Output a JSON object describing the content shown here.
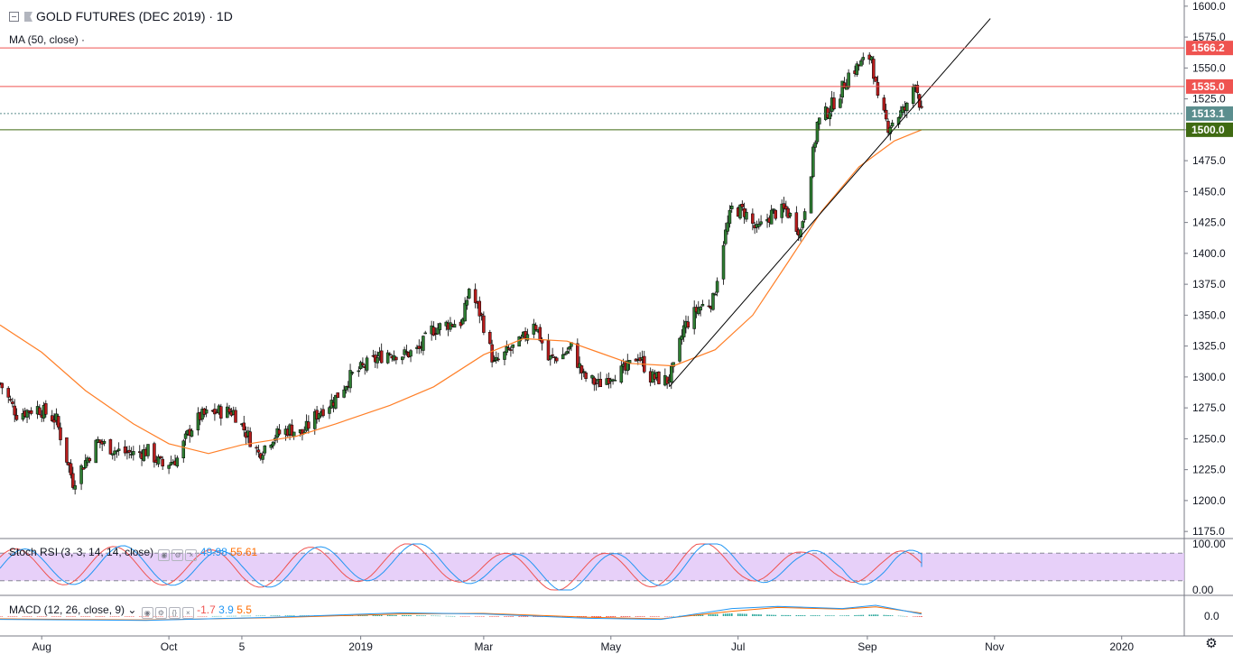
{
  "header": {
    "symbol_title": "GOLD FUTURES (DEC 2019) · 1D",
    "ma_label": "MA (50, close) ·"
  },
  "stoch": {
    "label": "Stoch RSI (3, 3, 14, 14, close)",
    "k_value": "49.98",
    "d_value": "55.61",
    "axis_labels": [
      "100.00",
      "0.00"
    ]
  },
  "macd": {
    "label": "MACD (12, 26, close, 9)",
    "hist_value": "-1.7",
    "macd_value": "3.9",
    "signal_value": "5.5",
    "axis_label": "0.0"
  },
  "toolbar": {
    "settings_icon": "gear-icon"
  },
  "chart_data": {
    "type": "candlestick",
    "title": "GOLD FUTURES (DEC 2019) · 1D",
    "price_axis": {
      "ylim": [
        1170,
        1605
      ],
      "ticks": [
        "1600.0",
        "1575.0",
        "1550.0",
        "1525.0",
        "1500.0",
        "1475.0",
        "1450.0",
        "1425.0",
        "1400.0",
        "1375.0",
        "1350.0",
        "1325.0",
        "1300.0",
        "1275.0",
        "1250.0",
        "1225.0",
        "1200.0",
        "1175.0"
      ]
    },
    "time_axis": {
      "labels": [
        {
          "label": "Aug",
          "date": "2018-08-01"
        },
        {
          "label": "Oct",
          "date": "2018-10-01"
        },
        {
          "label": "5",
          "date": "2018-11-05"
        },
        {
          "label": "2019",
          "date": "2019-01-01"
        },
        {
          "label": "Mar",
          "date": "2019-03-01"
        },
        {
          "label": "May",
          "date": "2019-05-01"
        },
        {
          "label": "Jul",
          "date": "2019-07-01"
        },
        {
          "label": "Sep",
          "date": "2019-09-01"
        },
        {
          "label": "Nov",
          "date": "2019-11-01"
        },
        {
          "label": "2020",
          "date": "2020-01-01"
        }
      ],
      "range": [
        "2018-07-12",
        "2020-01-31"
      ]
    },
    "close_path": [
      [
        "2018-07-12",
        1295
      ],
      [
        "2018-07-20",
        1270
      ],
      [
        "2018-07-30",
        1275
      ],
      [
        "2018-08-08",
        1265
      ],
      [
        "2018-08-16",
        1215
      ],
      [
        "2018-08-22",
        1232
      ],
      [
        "2018-08-28",
        1248
      ],
      [
        "2018-09-06",
        1240
      ],
      [
        "2018-09-14",
        1238
      ],
      [
        "2018-09-21",
        1240
      ],
      [
        "2018-09-28",
        1228
      ],
      [
        "2018-10-05",
        1234
      ],
      [
        "2018-10-11",
        1257
      ],
      [
        "2018-10-16",
        1268
      ],
      [
        "2018-10-24",
        1272
      ],
      [
        "2018-11-01",
        1272
      ],
      [
        "2018-11-07",
        1255
      ],
      [
        "2018-11-13",
        1238
      ],
      [
        "2018-11-20",
        1252
      ],
      [
        "2018-11-28",
        1258
      ],
      [
        "2018-12-04",
        1254
      ],
      [
        "2018-12-12",
        1272
      ],
      [
        "2018-12-19",
        1281
      ],
      [
        "2018-12-27",
        1300
      ],
      [
        "2019-01-04",
        1310
      ],
      [
        "2019-01-14",
        1320
      ],
      [
        "2019-01-22",
        1318
      ],
      [
        "2019-01-29",
        1322
      ],
      [
        "2019-02-04",
        1338
      ],
      [
        "2019-02-12",
        1343
      ],
      [
        "2019-02-19",
        1345
      ],
      [
        "2019-02-22",
        1372
      ],
      [
        "2019-02-28",
        1348
      ],
      [
        "2019-03-06",
        1310
      ],
      [
        "2019-03-13",
        1321
      ],
      [
        "2019-03-19",
        1328
      ],
      [
        "2019-03-25",
        1346
      ],
      [
        "2019-04-01",
        1314
      ],
      [
        "2019-04-08",
        1318
      ],
      [
        "2019-04-12",
        1324
      ],
      [
        "2019-04-18",
        1300
      ],
      [
        "2019-04-25",
        1294
      ],
      [
        "2019-05-02",
        1303
      ],
      [
        "2019-05-08",
        1305
      ],
      [
        "2019-05-14",
        1318
      ],
      [
        "2019-05-20",
        1300
      ],
      [
        "2019-05-28",
        1297
      ],
      [
        "2019-05-31",
        1306
      ],
      [
        "2019-06-05",
        1340
      ],
      [
        "2019-06-12",
        1356
      ],
      [
        "2019-06-19",
        1362
      ],
      [
        "2019-06-24",
        1410
      ],
      [
        "2019-06-28",
        1436
      ],
      [
        "2019-07-04",
        1434
      ],
      [
        "2019-07-10",
        1418
      ],
      [
        "2019-07-17",
        1432
      ],
      [
        "2019-07-24",
        1435
      ],
      [
        "2019-07-31",
        1418
      ],
      [
        "2019-08-05",
        1468
      ],
      [
        "2019-08-08",
        1505
      ],
      [
        "2019-08-13",
        1515
      ],
      [
        "2019-08-19",
        1530
      ],
      [
        "2019-08-23",
        1545
      ],
      [
        "2019-08-28",
        1552
      ],
      [
        "2019-09-03",
        1560
      ],
      [
        "2019-09-06",
        1522
      ],
      [
        "2019-09-11",
        1503
      ],
      [
        "2019-09-16",
        1512
      ],
      [
        "2019-09-20",
        1518
      ],
      [
        "2019-09-24",
        1541
      ],
      [
        "2019-09-27",
        1513.1
      ]
    ],
    "ma_50_path": [
      [
        "2018-07-12",
        1342
      ],
      [
        "2018-08-01",
        1320
      ],
      [
        "2018-08-22",
        1289
      ],
      [
        "2018-09-14",
        1262
      ],
      [
        "2018-10-01",
        1246
      ],
      [
        "2018-10-20",
        1238
      ],
      [
        "2018-11-05",
        1245
      ],
      [
        "2018-12-01",
        1252
      ],
      [
        "2018-12-20",
        1262
      ],
      [
        "2019-01-15",
        1277
      ],
      [
        "2019-02-05",
        1292
      ],
      [
        "2019-03-01",
        1318
      ],
      [
        "2019-03-20",
        1331
      ],
      [
        "2019-04-10",
        1329
      ],
      [
        "2019-04-25",
        1320
      ],
      [
        "2019-05-10",
        1311
      ],
      [
        "2019-05-31",
        1309
      ],
      [
        "2019-06-20",
        1322
      ],
      [
        "2019-07-08",
        1350
      ],
      [
        "2019-07-25",
        1393
      ],
      [
        "2019-08-10",
        1434
      ],
      [
        "2019-08-28",
        1470
      ],
      [
        "2019-09-14",
        1491
      ],
      [
        "2019-09-27",
        1500
      ]
    ],
    "trendline": [
      [
        "2019-05-29",
        1292
      ],
      [
        "2019-10-30",
        1590
      ]
    ],
    "horizontal_levels": [
      {
        "value": 1566.2,
        "label": "1566.2",
        "color": "#ef5350"
      },
      {
        "value": 1535.0,
        "label": "1535.0",
        "color": "#ef5350"
      },
      {
        "value": 1513.1,
        "label": "1513.1",
        "color": "#5b8e8e",
        "dashed": true
      },
      {
        "value": 1500.0,
        "label": "1500.0",
        "color": "#3f6a12"
      }
    ],
    "stoch_rsi": {
      "range": [
        0,
        100
      ],
      "upper_band": 80,
      "lower_band": 20,
      "k_path": [
        [
          "2018-07-12",
          40
        ],
        [
          "2018-09-10",
          70
        ],
        [
          "2018-11-05",
          25
        ],
        [
          "2019-01-10",
          90
        ],
        [
          "2019-02-15",
          85
        ],
        [
          "2019-03-10",
          10
        ],
        [
          "2019-04-20",
          5
        ],
        [
          "2019-05-15",
          20
        ],
        [
          "2019-06-10",
          95
        ],
        [
          "2019-07-05",
          95
        ],
        [
          "2019-08-01",
          15
        ],
        [
          "2019-08-20",
          95
        ],
        [
          "2019-09-10",
          10
        ],
        [
          "2019-09-27",
          49.98
        ]
      ],
      "d_path": [
        [
          "2018-07-12",
          45
        ],
        [
          "2018-09-10",
          65
        ],
        [
          "2018-11-05",
          30
        ],
        [
          "2019-01-10",
          88
        ],
        [
          "2019-02-15",
          80
        ],
        [
          "2019-03-10",
          15
        ],
        [
          "2019-04-20",
          10
        ],
        [
          "2019-05-15",
          25
        ],
        [
          "2019-06-10",
          90
        ],
        [
          "2019-07-05",
          92
        ],
        [
          "2019-08-01",
          20
        ],
        [
          "2019-08-20",
          90
        ],
        [
          "2019-09-10",
          15
        ],
        [
          "2019-09-27",
          55.61
        ]
      ]
    },
    "macd_series": {
      "macd_path": [
        [
          "2018-07-12",
          -6
        ],
        [
          "2018-09-20",
          -8
        ],
        [
          "2018-11-20",
          -2
        ],
        [
          "2019-01-20",
          6
        ],
        [
          "2019-03-01",
          4
        ],
        [
          "2019-04-20",
          -4
        ],
        [
          "2019-05-25",
          -6
        ],
        [
          "2019-06-28",
          14
        ],
        [
          "2019-07-20",
          18
        ],
        [
          "2019-08-20",
          14
        ],
        [
          "2019-09-05",
          20
        ],
        [
          "2019-09-27",
          3.9
        ]
      ],
      "signal_path": [
        [
          "2018-07-12",
          -5
        ],
        [
          "2018-09-20",
          -7
        ],
        [
          "2018-11-20",
          -3
        ],
        [
          "2019-01-20",
          4
        ],
        [
          "2019-03-01",
          5
        ],
        [
          "2019-04-20",
          -2
        ],
        [
          "2019-05-25",
          -5
        ],
        [
          "2019-06-28",
          9
        ],
        [
          "2019-07-20",
          16
        ],
        [
          "2019-08-20",
          13
        ],
        [
          "2019-09-05",
          17
        ],
        [
          "2019-09-27",
          5.5
        ]
      ]
    },
    "colors": {
      "up": "#2e7d32",
      "down": "#b71c1c",
      "ma": "#ff7f27",
      "trendline": "#000000",
      "stoch_k": "#2196f3",
      "stoch_d": "#ef5350",
      "stoch_fill": "#e1c4f7",
      "macd_line": "#2196f3",
      "signal_line": "#ff6d00",
      "hist_up": "#26a69a",
      "hist_down": "#ef5350",
      "grid": "#ffffff",
      "axis_text": "#131722"
    }
  }
}
